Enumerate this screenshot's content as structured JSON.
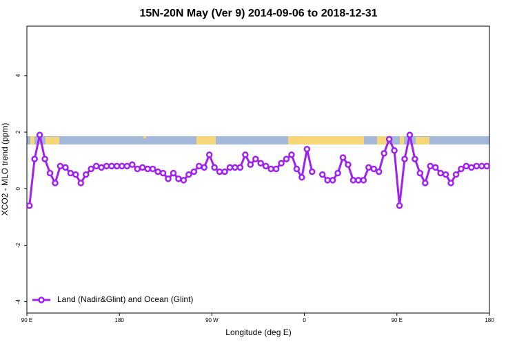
{
  "chart_data": {
    "type": "line",
    "title": "15N-20N May (Ver 9)   2014-09-06 to 2018-12-31",
    "x_label": "Longitude (deg E)",
    "y_label": "XCO2 - MLO trend (ppm)",
    "x": [
      92.5,
      97.5,
      102.5,
      107.5,
      112.5,
      117.5,
      122.5,
      127.5,
      132.5,
      137.5,
      142.5,
      147.5,
      152.5,
      157.5,
      162.5,
      167.5,
      172.5,
      177.5,
      182.5,
      187.5,
      192.5,
      197.5,
      202.5,
      207.5,
      212.5,
      217.5,
      222.5,
      227.5,
      232.5,
      237.5,
      242.5,
      247.5,
      252.5,
      257.5,
      262.5,
      267.5,
      272.5,
      277.5,
      282.5,
      287.5,
      292.5,
      297.5,
      302.5,
      307.5,
      312.5,
      317.5,
      322.5,
      327.5,
      332.5,
      337.5,
      342.5,
      347.5,
      352.5,
      357.5,
      362.5,
      367.5,
      372.5,
      377.5,
      382.5,
      387.5,
      392.5,
      397.5,
      402.5,
      407.5,
      412.5,
      417.5,
      422.5,
      427.5,
      432.5,
      437.5,
      442.5,
      447.5,
      452.5,
      457.5,
      462.5,
      467.5,
      472.5,
      477.5,
      482.5,
      487.5,
      492.5,
      497.5,
      502.5,
      507.5,
      512.5,
      517.5,
      522.5,
      527.5,
      532.5,
      537.5
    ],
    "series": [
      {
        "name": "Land (Nadir&Glint) and Ocean (Glint)",
        "color": "#a020f0",
        "values": [
          -0.6,
          1.05,
          1.9,
          1.05,
          0.55,
          0.2,
          0.8,
          0.75,
          0.55,
          0.5,
          0.2,
          0.5,
          0.7,
          0.8,
          0.75,
          0.8,
          0.8,
          0.8,
          0.8,
          0.8,
          0.85,
          0.7,
          0.75,
          0.7,
          0.7,
          0.6,
          0.55,
          0.35,
          0.55,
          0.35,
          0.3,
          0.5,
          0.6,
          0.8,
          0.75,
          1.2,
          0.75,
          0.6,
          0.6,
          0.75,
          0.75,
          0.75,
          1.2,
          0.85,
          1.05,
          0.9,
          0.8,
          0.7,
          0.7,
          0.9,
          1.05,
          1.2,
          0.7,
          0.4,
          1.4,
          0.6,
          null,
          0.5,
          0.3,
          0.3,
          0.55,
          1.1,
          0.85,
          0.3,
          0.3,
          0.3,
          0.75,
          0.7,
          0.6,
          1.25,
          1.75,
          1.35,
          -0.6,
          1.05,
          1.9,
          1.05,
          0.55,
          0.2,
          0.8,
          0.75,
          0.55,
          0.5,
          0.2,
          0.5,
          0.7,
          0.8,
          0.75,
          0.8,
          0.8,
          0.8
        ]
      }
    ],
    "xlim": [
      90,
      540
    ],
    "xticks": [
      {
        "value": 90,
        "label": "90 E"
      },
      180,
      {
        "value": 270,
        "label": "90 W"
      },
      {
        "value": 360,
        "label": "0"
      },
      {
        "value": 450,
        "label": "90 E"
      },
      {
        "value": 540,
        "label": "180"
      }
    ],
    "ylim": [
      -4.4,
      5.75
    ],
    "yticks": [
      -4,
      -2,
      0,
      2,
      4
    ],
    "legend": "bottom-left"
  }
}
